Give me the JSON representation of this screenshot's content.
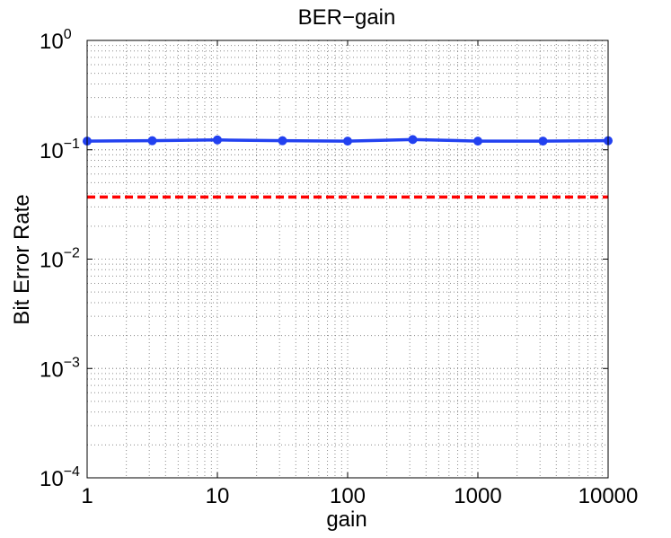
{
  "chart_data": {
    "type": "line",
    "title": "BER−gain",
    "xlabel": "gain",
    "ylabel": "Bit Error Rate",
    "x_scale": "log",
    "y_scale": "log",
    "xlim": [
      1,
      10000
    ],
    "ylim": [
      0.0001,
      1
    ],
    "x_ticks": [
      {
        "value": 1,
        "label": "1"
      },
      {
        "value": 10,
        "label": "10"
      },
      {
        "value": 100,
        "label": "100"
      },
      {
        "value": 1000,
        "label": "1000"
      },
      {
        "value": 10000,
        "label": "10000"
      }
    ],
    "y_ticks": [
      {
        "value": 0.0001,
        "base": "10",
        "exp": "−4"
      },
      {
        "value": 0.001,
        "base": "10",
        "exp": "−3"
      },
      {
        "value": 0.01,
        "base": "10",
        "exp": "−2"
      },
      {
        "value": 0.1,
        "base": "10",
        "exp": "−1"
      },
      {
        "value": 1,
        "base": "10",
        "exp": "0"
      }
    ],
    "grid": true,
    "series": [
      {
        "color": "#2241f0",
        "style": "solid",
        "markers": true,
        "x": [
          1,
          3.162,
          10,
          31.62,
          100,
          316.2,
          1000,
          3162,
          10000
        ],
        "y": [
          0.12,
          0.121,
          0.123,
          0.121,
          0.12,
          0.124,
          0.12,
          0.12,
          0.121
        ]
      },
      {
        "color": "#ff0000",
        "style": "dashed",
        "markers": false,
        "x": [
          1,
          10000
        ],
        "y": [
          0.037,
          0.037
        ]
      }
    ]
  }
}
